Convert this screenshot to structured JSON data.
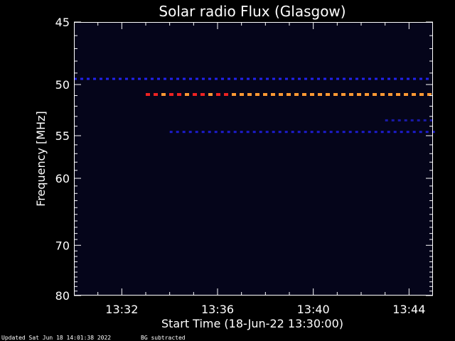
{
  "chart_data": {
    "type": "heatmap",
    "title": "Solar radio Flux (Glasgow)",
    "xlabel": "Start Time (18-Jun-22 13:30:00)",
    "ylabel": "Frequency [MHz]",
    "x_range": [
      "13:30:00",
      "13:45:00"
    ],
    "ylim": [
      45,
      80
    ],
    "x_ticks": [
      "13:32",
      "13:36",
      "13:40",
      "13:44"
    ],
    "x_tick_minutes": [
      2,
      6,
      10,
      14
    ],
    "y_ticks": [
      45,
      50,
      55,
      60,
      70,
      80
    ],
    "grid": false,
    "background_color": "#05051a",
    "bands": [
      {
        "freq": 49.5,
        "start_min": 0.0,
        "end_min": 15.0,
        "level": "low",
        "color": "#2222ee"
      },
      {
        "freq": 50.9,
        "start_min": 3.0,
        "end_min": 15.0,
        "level": "high",
        "color": "#ff9933",
        "onset_color": "#ee2222"
      },
      {
        "freq": 54.6,
        "start_min": 4.0,
        "end_min": 15.0,
        "level": "low",
        "color": "#1c1ccc"
      },
      {
        "freq": 53.4,
        "start_min": 13.0,
        "end_min": 15.0,
        "level": "low",
        "color": "#1a1aaa"
      }
    ]
  },
  "footer": {
    "updated": "Updated Sat Jun 18 14:01:38 2022",
    "note": "BG subtracted"
  }
}
